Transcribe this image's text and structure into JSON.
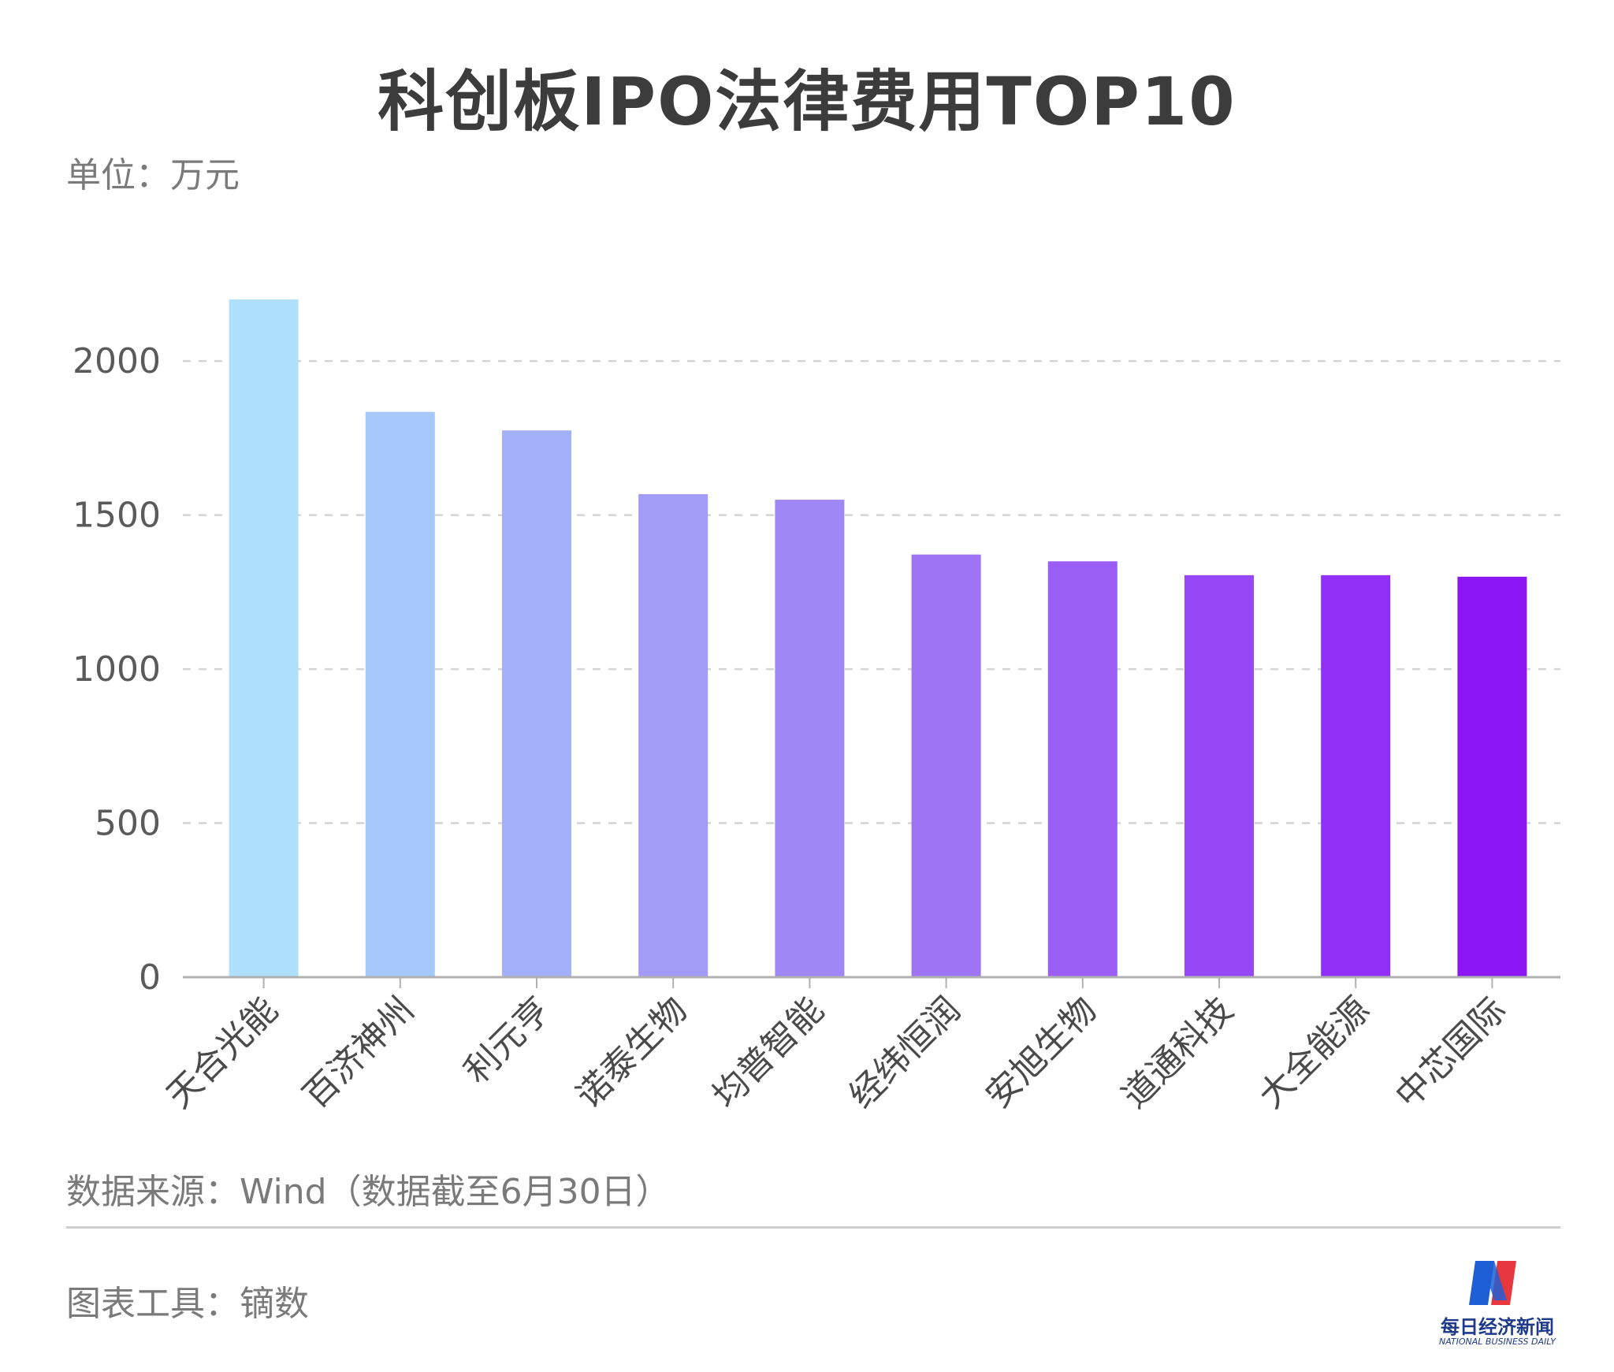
{
  "chart_data": {
    "type": "bar",
    "title": "科创板IPO法律费用TOP10",
    "unit_label": "单位：万元",
    "categories": [
      "天合光能",
      "百济神州",
      "利元亨",
      "诺泰生物",
      "均普智能",
      "经纬恒润",
      "安旭生物",
      "道通科技",
      "大全能源",
      "中芯国际"
    ],
    "values": [
      2200,
      1835,
      1775,
      1568,
      1550,
      1372,
      1350,
      1305,
      1305,
      1300
    ],
    "yticks": [
      0,
      500,
      1000,
      1500,
      2000
    ],
    "ylim": [
      0,
      2200
    ],
    "grid": true,
    "bar_colors": [
      "#aee0fb",
      "#a6c8fb",
      "#a4b0f9",
      "#a39cf7",
      "#9f88f5",
      "#9c74f4",
      "#9a5ef5",
      "#9647f6",
      "#912ff6",
      "#8d16f5"
    ]
  },
  "footer": {
    "source": "数据来源：Wind（数据截至6月30日）",
    "tool": "图表工具：镝数"
  },
  "logo": {
    "cn": "每日经济新闻",
    "en": "NATIONAL BUSINESS DAILY",
    "colors": [
      "#1f5fd6",
      "#e8383f"
    ]
  }
}
